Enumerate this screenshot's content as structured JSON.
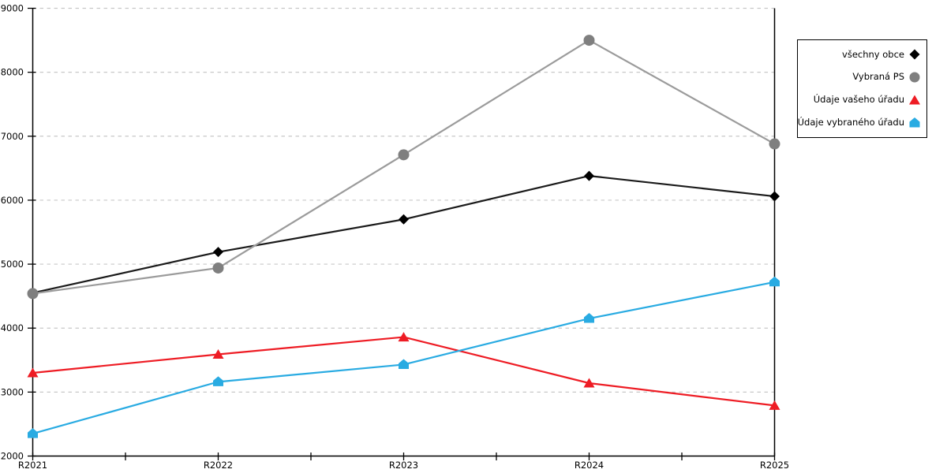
{
  "chart_data": {
    "type": "line",
    "title": "",
    "xlabel": "",
    "ylabel": "",
    "categories": [
      "R2021",
      "R2022",
      "R2023",
      "R2024",
      "R2025"
    ],
    "ylim": [
      2000,
      9000
    ],
    "yticks": [
      2000,
      3000,
      4000,
      5000,
      6000,
      7000,
      8000,
      9000
    ],
    "grid": "horizontal-dashed",
    "x_minor_ticks": "midpoints",
    "legend_position": "outside-top-right",
    "series": [
      {
        "name": "všechny obce",
        "marker": "diamond",
        "line_color": "#1a1a1a",
        "marker_color": "#000000",
        "values": [
          4550,
          5190,
          5700,
          6380,
          6060
        ]
      },
      {
        "name": "Vybraná PS",
        "marker": "circle",
        "line_color": "#9b9b9b",
        "marker_color": "#7f7f7f",
        "values": [
          4540,
          4940,
          6710,
          8500,
          6880
        ]
      },
      {
        "name": "Údaje vašeho úřadu",
        "marker": "triangle",
        "line_color": "#ee1c24",
        "marker_color": "#ee1c24",
        "values": [
          3300,
          3590,
          3860,
          3140,
          2790
        ]
      },
      {
        "name": "Údaje vybraného úřadu",
        "marker": "pentagon",
        "line_color": "#29abe2",
        "marker_color": "#29abe2",
        "values": [
          2350,
          3160,
          3430,
          4150,
          4720
        ]
      }
    ],
    "colors": {
      "background": "#ffffff",
      "grid": "#c8c8c8",
      "axis": "#000000",
      "tick_label": "#000000"
    }
  }
}
